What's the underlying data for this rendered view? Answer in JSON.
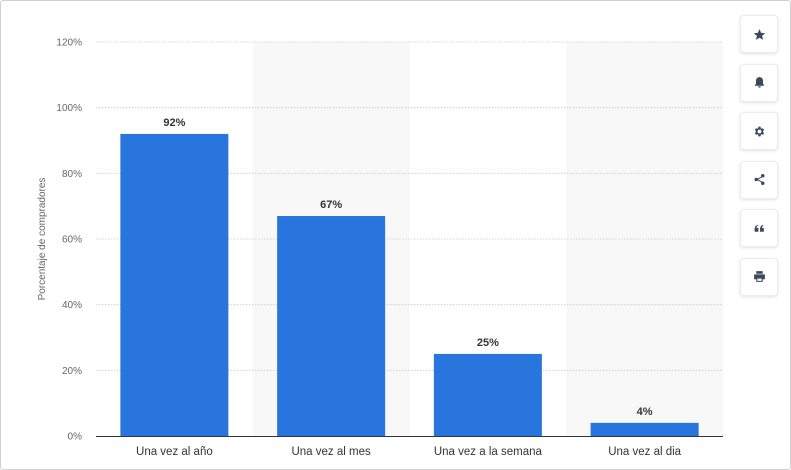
{
  "chart_data": {
    "type": "bar",
    "categories": [
      "Una vez al año",
      "Una vez al mes",
      "Una vez a la semana",
      "Una vez al dia"
    ],
    "values": [
      92,
      67,
      25,
      4
    ],
    "value_labels": [
      "92%",
      "67%",
      "25%",
      "4%"
    ],
    "xlabel": "",
    "ylabel": "Porcentaje de compradores",
    "ylim": [
      0,
      120
    ],
    "yticks": [
      0,
      20,
      40,
      60,
      80,
      100,
      120
    ],
    "ytick_labels": [
      "0%",
      "20%",
      "40%",
      "60%",
      "80%",
      "100%",
      "120%"
    ],
    "grid": true,
    "legend": "none",
    "bar_color": "#2876dd",
    "band_color": "#f8f8f9"
  },
  "toolbar": {
    "buttons": [
      {
        "name": "star-icon",
        "action": "favorite"
      },
      {
        "name": "bell-icon",
        "action": "notifications"
      },
      {
        "name": "gear-icon",
        "action": "settings"
      },
      {
        "name": "share-icon",
        "action": "share"
      },
      {
        "name": "quote-icon",
        "action": "cite"
      },
      {
        "name": "print-icon",
        "action": "print"
      }
    ]
  }
}
